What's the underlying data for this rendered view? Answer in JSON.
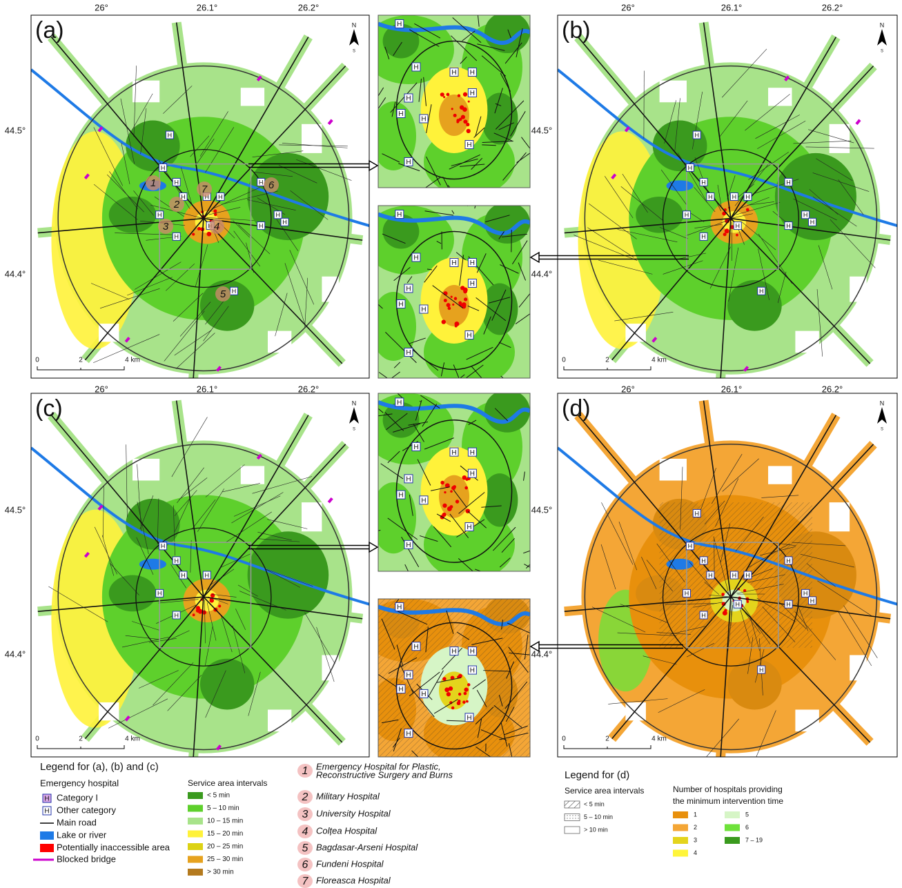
{
  "panels": [
    {
      "label": "(a)"
    },
    {
      "label": "(b)"
    },
    {
      "label": "(c)"
    },
    {
      "label": "(d)"
    }
  ],
  "longitude_ticks": [
    "26°",
    "26.1°",
    "26.2°"
  ],
  "latitude_ticks": [
    "44.5°",
    "44.4°"
  ],
  "scale_bar": [
    "0",
    "2",
    "4 km"
  ],
  "north_arrow": {
    "north": "N",
    "south": "S"
  },
  "hospital_marker": "H",
  "legend_abc": {
    "title": "Legend for (a), (b) and (c)",
    "emergency_hospital": "Emergency hospital",
    "category_1": "Category I",
    "other_category": "Other category",
    "main_road": "Main road",
    "lake_or_river": "Lake or river",
    "inaccessible_area": "Potentially inaccessible area",
    "blocked_bridge": "Blocked bridge",
    "service_title": "Service area intervals",
    "intervals": [
      {
        "label": "< 5 min",
        "color": "#3a9a1e"
      },
      {
        "label": "5 – 10 min",
        "color": "#5ed02c"
      },
      {
        "label": "10 – 15 min",
        "color": "#a8e38a"
      },
      {
        "label": "15 – 20 min",
        "color": "#fff23a"
      },
      {
        "label": "20 – 25 min",
        "color": "#dcd214"
      },
      {
        "label": "25 – 30 min",
        "color": "#e6a21e"
      },
      {
        "label": "> 30 min",
        "color": "#b47a1e"
      }
    ]
  },
  "hospitals": [
    {
      "number": "1",
      "name_lines": [
        "Emergency Hospital for Plastic,",
        "Reconstructive Surgery and Burns"
      ]
    },
    {
      "number": "2",
      "name_lines": [
        "Military Hospital"
      ]
    },
    {
      "number": "3",
      "name_lines": [
        "University Hospital"
      ]
    },
    {
      "number": "4",
      "name_lines": [
        "Colțea Hospital"
      ]
    },
    {
      "number": "5",
      "name_lines": [
        "Bagdasar-Arseni Hospital"
      ]
    },
    {
      "number": "6",
      "name_lines": [
        "Fundeni Hospital"
      ]
    },
    {
      "number": "7",
      "name_lines": [
        "Floreasca Hospital"
      ]
    }
  ],
  "legend_d": {
    "title": "Legend for (d)",
    "service_title": "Service area intervals",
    "intervals": [
      "< 5 min",
      "5 – 10 min",
      "> 10 min"
    ],
    "count_title_lines": [
      "Number of hospitals providing",
      "the minimum intervention time"
    ],
    "counts": [
      {
        "label": "1",
        "color": "#e8900c"
      },
      {
        "label": "2",
        "color": "#f4a636"
      },
      {
        "label": "3",
        "color": "#e4d41c"
      },
      {
        "label": "4",
        "color": "#fff53a"
      },
      {
        "label": "5",
        "color": "#d6f5c6"
      },
      {
        "label": "6",
        "color": "#6ee23a"
      },
      {
        "label": "7 – 19",
        "color": "#3a9a1e"
      }
    ]
  }
}
